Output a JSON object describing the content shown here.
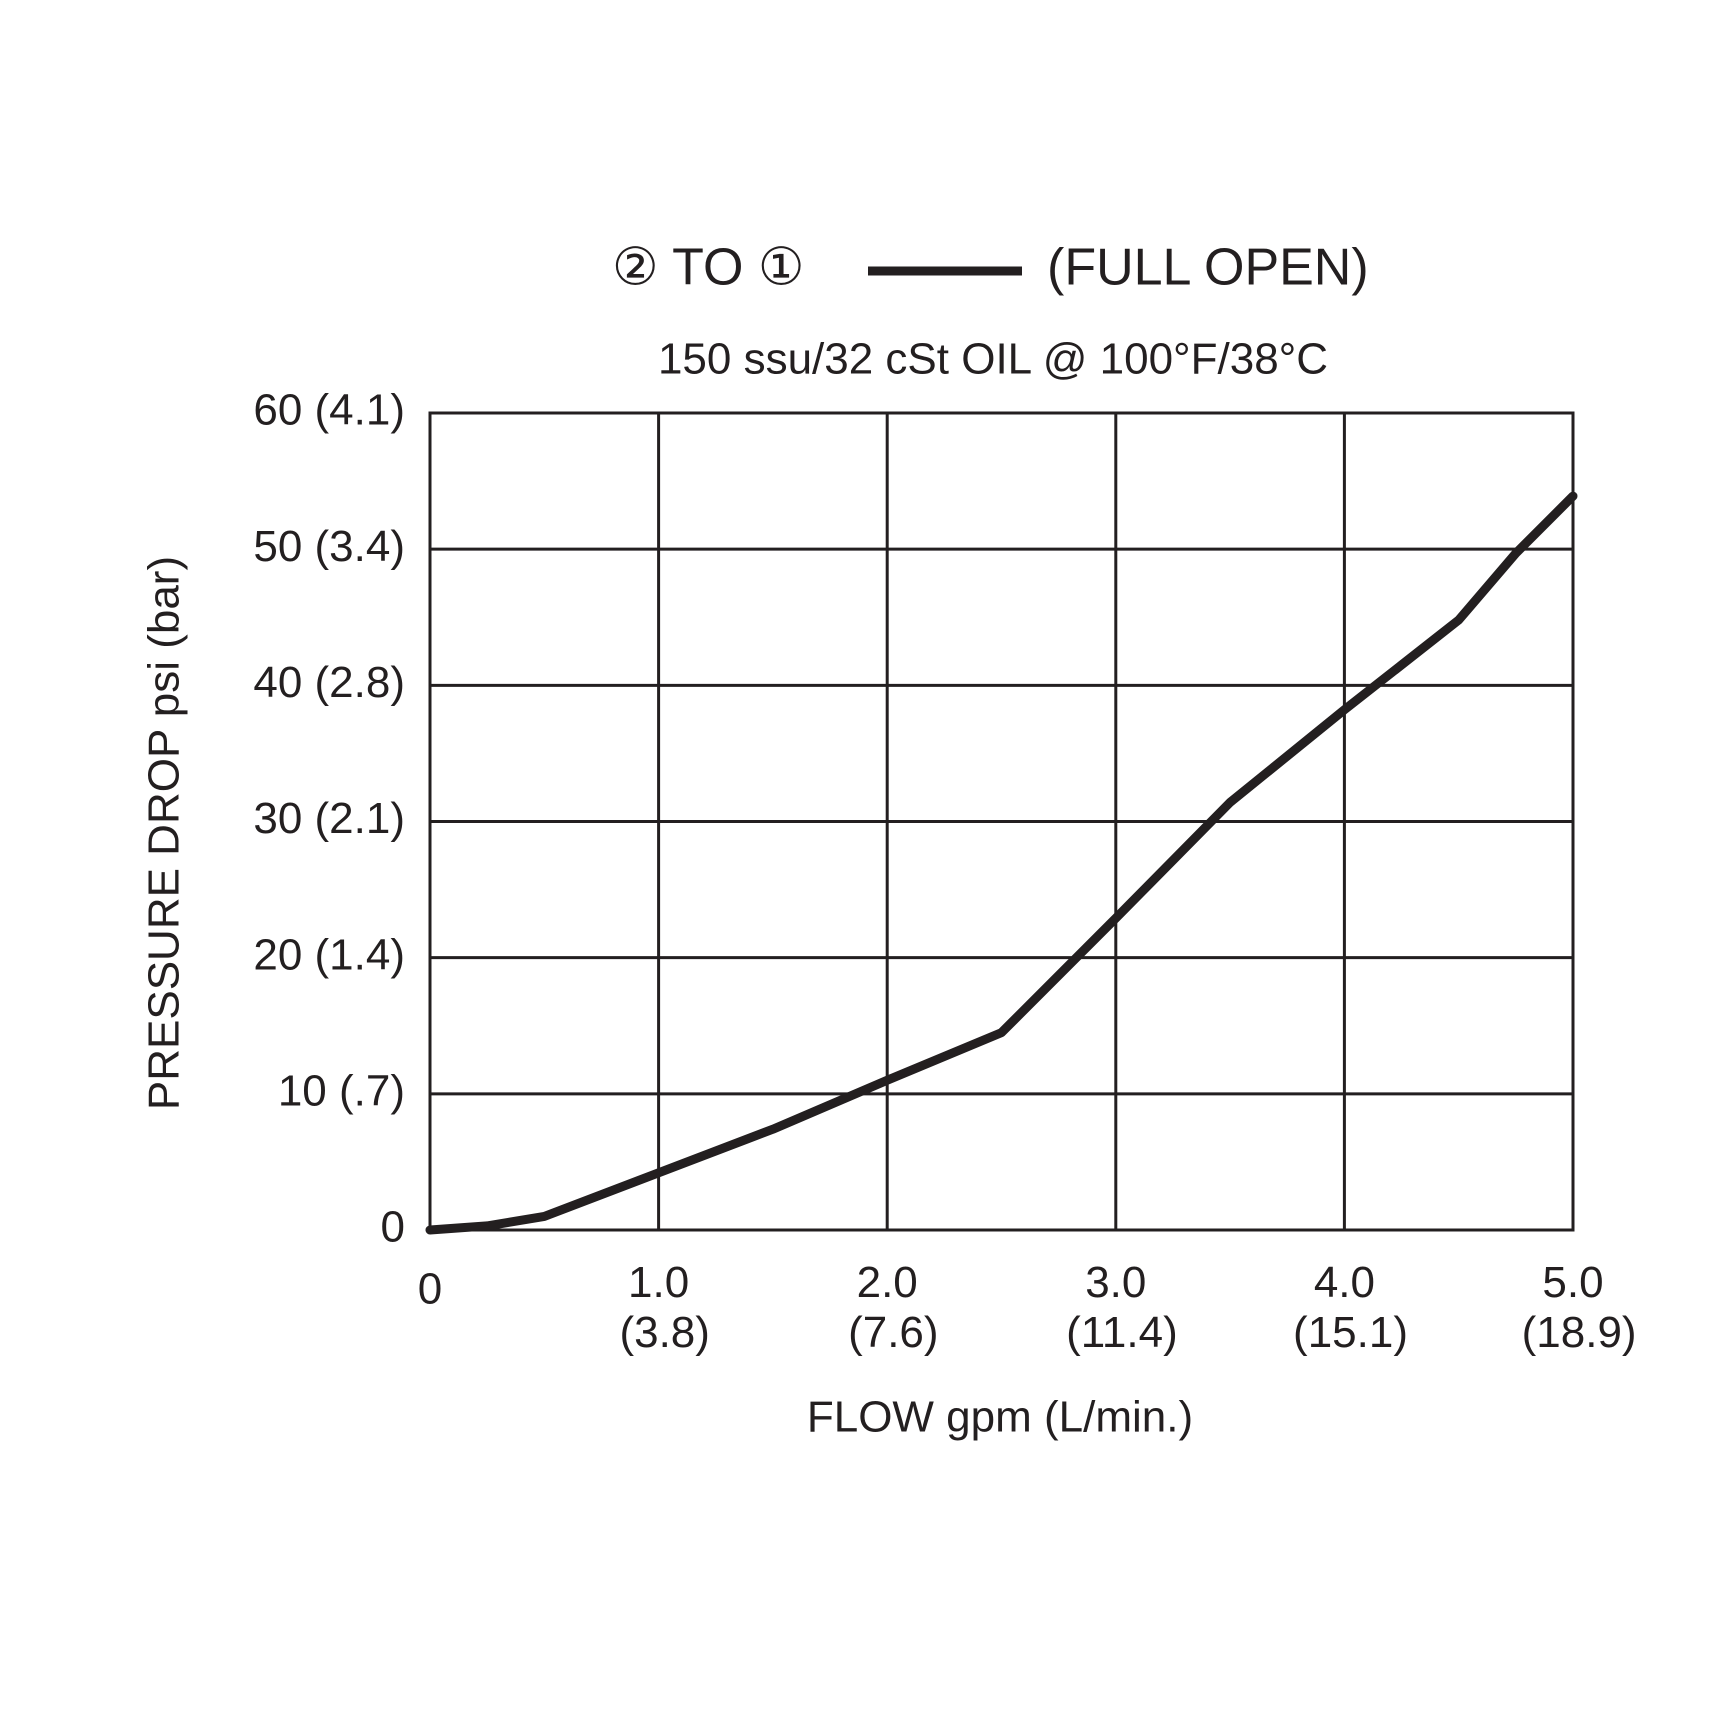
{
  "chart_data": {
    "type": "line",
    "title": "② TO ①",
    "legend_note": "(FULL OPEN)",
    "subtitle": "150 ssu/32 cSt OIL @ 100°F/38°C",
    "x_label": "FLOW gpm (L/min.)",
    "y_label": "PRESSURE DROP psi (bar)",
    "x": [
      0,
      0.25,
      0.5,
      1.0,
      1.5,
      2.0,
      2.5,
      3.0,
      3.5,
      4.0,
      4.5,
      4.75,
      5.0
    ],
    "series": [
      {
        "name": "② TO ①",
        "color": "#231f20",
        "values": [
          0,
          0.3,
          1.0,
          4.2,
          7.4,
          11.0,
          14.5,
          22.9,
          31.4,
          38.2,
          44.8,
          49.7,
          53.9
        ]
      }
    ],
    "xlim": [
      0,
      5
    ],
    "ylim": [
      0,
      60
    ],
    "xticks": [
      0,
      {
        "value": 1,
        "label": "1.0\n(3.8)"
      },
      {
        "value": 2,
        "label": "2.0\n(7.6)"
      },
      {
        "value": 3,
        "label": "3.0\n(11.4)"
      },
      {
        "value": 4,
        "label": "4.0\n(15.1)"
      },
      {
        "value": 5,
        "label": "5.0\n(18.9)"
      }
    ],
    "yticks": [
      0,
      {
        "value": 10,
        "label": "10 (.7)"
      },
      {
        "value": 20,
        "label": "20 (1.4)"
      },
      {
        "value": 30,
        "label": "30 (2.1)"
      },
      {
        "value": 40,
        "label": "40 (2.8)"
      },
      {
        "value": 50,
        "label": "50 (3.4)"
      },
      {
        "value": 60,
        "label": "60 (4.1)"
      }
    ],
    "grid": true
  }
}
